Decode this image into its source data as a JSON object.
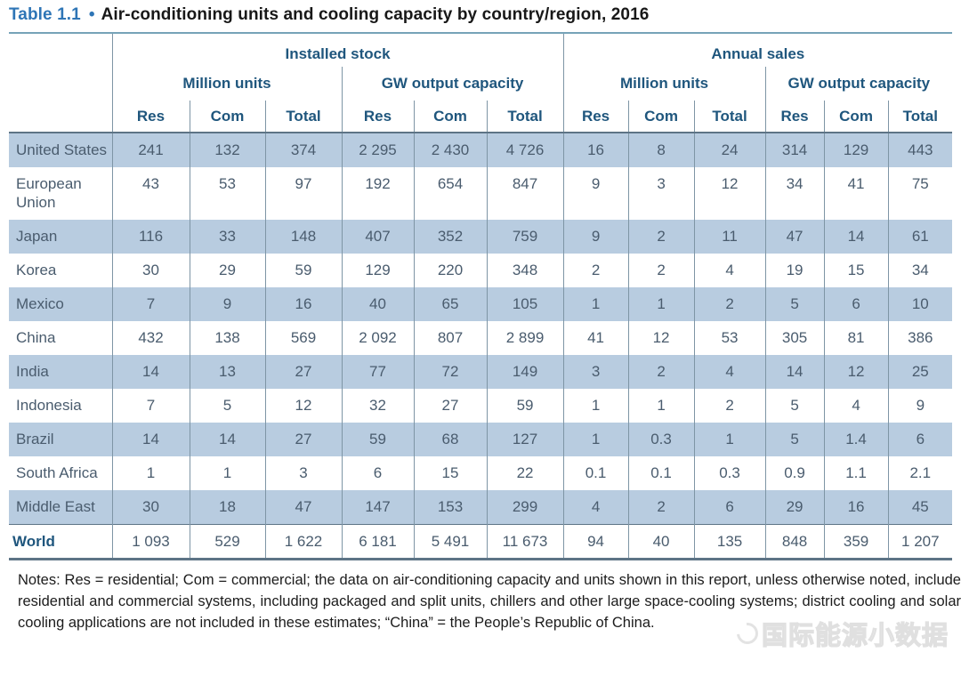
{
  "title": {
    "label": "Table 1.1",
    "bullet": "•",
    "text": "Air-conditioning units and cooling capacity by country/region, 2016"
  },
  "table": {
    "corner": "",
    "groups": {
      "installed": "Installed stock",
      "annual": "Annual sales"
    },
    "subgroups": {
      "installed_units": "Million units",
      "installed_gw": "GW output capacity",
      "annual_units": "Million units",
      "annual_gw": "GW output capacity"
    },
    "col_headers": [
      "Res",
      "Com",
      "Total",
      "Res",
      "Com",
      "Total",
      "Res",
      "Com",
      "Total",
      "Res",
      "Com",
      "Total"
    ],
    "rows": [
      {
        "region": "United States",
        "shaded": true,
        "values": [
          "241",
          "132",
          "374",
          "2 295",
          "2 430",
          "4 726",
          "16",
          "8",
          "24",
          "314",
          "129",
          "443"
        ]
      },
      {
        "region": "European Union",
        "shaded": false,
        "values": [
          "43",
          "53",
          "97",
          "192",
          "654",
          "847",
          "9",
          "3",
          "12",
          "34",
          "41",
          "75"
        ]
      },
      {
        "region": "Japan",
        "shaded": true,
        "values": [
          "116",
          "33",
          "148",
          "407",
          "352",
          "759",
          "9",
          "2",
          "11",
          "47",
          "14",
          "61"
        ]
      },
      {
        "region": "Korea",
        "shaded": false,
        "values": [
          "30",
          "29",
          "59",
          "129",
          "220",
          "348",
          "2",
          "2",
          "4",
          "19",
          "15",
          "34"
        ]
      },
      {
        "region": "Mexico",
        "shaded": true,
        "values": [
          "7",
          "9",
          "16",
          "40",
          "65",
          "105",
          "1",
          "1",
          "2",
          "5",
          "6",
          "10"
        ]
      },
      {
        "region": "China",
        "shaded": false,
        "values": [
          "432",
          "138",
          "569",
          "2 092",
          "807",
          "2 899",
          "41",
          "12",
          "53",
          "305",
          "81",
          "386"
        ]
      },
      {
        "region": "India",
        "shaded": true,
        "values": [
          "14",
          "13",
          "27",
          "77",
          "72",
          "149",
          "3",
          "2",
          "4",
          "14",
          "12",
          "25"
        ]
      },
      {
        "region": "Indonesia",
        "shaded": false,
        "values": [
          "7",
          "5",
          "12",
          "32",
          "27",
          "59",
          "1",
          "1",
          "2",
          "5",
          "4",
          "9"
        ]
      },
      {
        "region": "Brazil",
        "shaded": true,
        "values": [
          "14",
          "14",
          "27",
          "59",
          "68",
          "127",
          "1",
          "0.3",
          "1",
          "5",
          "1.4",
          "6"
        ]
      },
      {
        "region": "South Africa",
        "shaded": false,
        "values": [
          "1",
          "1",
          "3",
          "6",
          "15",
          "22",
          "0.1",
          "0.1",
          "0.3",
          "0.9",
          "1.1",
          "2.1"
        ]
      },
      {
        "region": "Middle East",
        "shaded": true,
        "values": [
          "30",
          "18",
          "47",
          "147",
          "153",
          "299",
          "4",
          "2",
          "6",
          "29",
          "16",
          "45"
        ]
      }
    ],
    "total_row": {
      "region": "World",
      "values": [
        "1 093",
        "529",
        "1 622",
        "6 181",
        "5 491",
        "11 673",
        "94",
        "40",
        "135",
        "848",
        "359",
        "1 207"
      ]
    }
  },
  "notes": "Notes: Res = residential; Com = commercial; the data on air-conditioning capacity and units shown in this report, unless otherwise noted, include residential and commercial systems, including packaged and split units, chillers and other large space-cooling systems; district cooling and solar cooling applications are not included in these estimates; “China” = the People’s Republic of China.",
  "watermark": {
    "text": "国际能源小数据"
  },
  "colors": {
    "row_shade": "#b8cce0",
    "header_text": "#1f567d",
    "body_text": "#4a5c6e",
    "title_accent": "#2e75b6",
    "rule_heavy": "#5d7486",
    "rule_light": "#7e95a5",
    "top_rule": "#76a3b8"
  }
}
